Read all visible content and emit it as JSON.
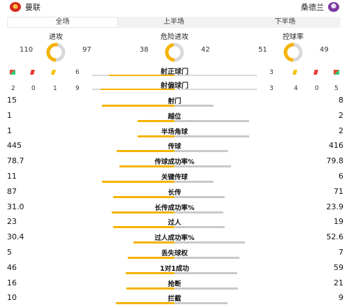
{
  "header": {
    "home_team": "曼联",
    "away_team": "桑德兰",
    "home_crest_icon": "manchester-united-crest-icon",
    "away_crest_icon": "sunderland-crest-icon"
  },
  "tabs": [
    {
      "label": "全场",
      "active": true
    },
    {
      "label": "上半场",
      "active": false
    },
    {
      "label": "下半场",
      "active": false
    }
  ],
  "rings": [
    {
      "title": "进攻",
      "home": "110",
      "away": "97"
    },
    {
      "title": "危险进攻",
      "home": "38",
      "away": "42"
    },
    {
      "title": "控球率",
      "home": "51",
      "away": "49"
    }
  ],
  "discipline": {
    "home": {
      "corners": "2",
      "red": "0",
      "yellow": "1",
      "shots_on_target": "6",
      "shots_off_target": "9"
    },
    "away": {
      "corners": "5",
      "red": "0",
      "yellow": "4",
      "shots_on_target": "3",
      "shots_off_target": "3"
    }
  },
  "summary_rows": [
    {
      "label": "射正球门",
      "home": 6,
      "away": 3
    },
    {
      "label": "射偏球门",
      "home": 9,
      "away": 3
    }
  ],
  "stats": [
    {
      "label": "射门",
      "home": "15",
      "away": "8",
      "hv": 15,
      "av": 8
    },
    {
      "label": "越位",
      "home": "1",
      "away": "2",
      "hv": 1,
      "av": 2
    },
    {
      "label": "半场角球",
      "home": "1",
      "away": "2",
      "hv": 1,
      "av": 2
    },
    {
      "label": "传球",
      "home": "445",
      "away": "416",
      "hv": 445,
      "av": 416
    },
    {
      "label": "传球成功率%",
      "home": "78.7",
      "away": "79.8",
      "hv": 78.7,
      "av": 79.8
    },
    {
      "label": "关键传球",
      "home": "11",
      "away": "6",
      "hv": 11,
      "av": 6
    },
    {
      "label": "长传",
      "home": "87",
      "away": "71",
      "hv": 87,
      "av": 71
    },
    {
      "label": "长传成功率%",
      "home": "31.0",
      "away": "23.9",
      "hv": 31.0,
      "av": 23.9
    },
    {
      "label": "过人",
      "home": "23",
      "away": "19",
      "hv": 23,
      "av": 19
    },
    {
      "label": "过人成功率%",
      "home": "30.4",
      "away": "52.6",
      "hv": 30.4,
      "av": 52.6
    },
    {
      "label": "丢失球权",
      "home": "5",
      "away": "7",
      "hv": 5,
      "av": 7
    },
    {
      "label": "1对1成功",
      "home": "46",
      "away": "59",
      "hv": 46,
      "av": 59
    },
    {
      "label": "抢断",
      "home": "16",
      "away": "21",
      "hv": 16,
      "av": 21
    },
    {
      "label": "拦截",
      "home": "10",
      "away": "9",
      "hv": 10,
      "av": 9
    }
  ],
  "colors": {
    "home": "#f5b300",
    "away": "#c9c9c9"
  }
}
